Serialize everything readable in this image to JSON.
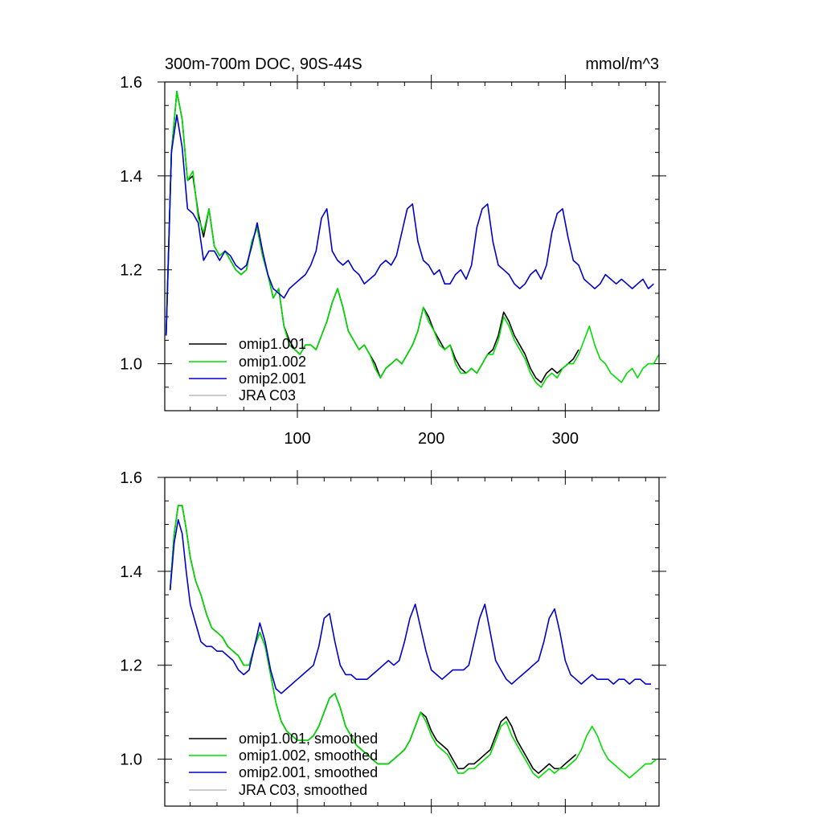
{
  "chart_data": [
    {
      "type": "line",
      "title": "300m-700m DOC, 90S-44S",
      "units": "mmol/m^3",
      "xlim": [
        1,
        370
      ],
      "ylim": [
        0.9,
        1.6
      ],
      "xticks": [
        100,
        200,
        300
      ],
      "yticks": [
        1.0,
        1.2,
        1.4,
        1.6
      ],
      "legend_position": "bottom-left",
      "series": [
        {
          "name": "omip1.001",
          "color": "#000000",
          "x": [
            2,
            6,
            10,
            14,
            18,
            22,
            26,
            30,
            34,
            38,
            42,
            46,
            50,
            54,
            58,
            62,
            66,
            70,
            74,
            78,
            82,
            86,
            90,
            94,
            98,
            102,
            106,
            110,
            114,
            118,
            122,
            126,
            130,
            134,
            138,
            142,
            146,
            150,
            154,
            158,
            162,
            166,
            170,
            174,
            178,
            182,
            186,
            190,
            194,
            198,
            202,
            206,
            210,
            214,
            218,
            222,
            226,
            230,
            234,
            238,
            242,
            246,
            250,
            254,
            258,
            262,
            266,
            270,
            274,
            278,
            282,
            286,
            290,
            294,
            298,
            302,
            306,
            310
          ],
          "y": [
            1.06,
            1.45,
            1.58,
            1.52,
            1.39,
            1.4,
            1.32,
            1.27,
            1.33,
            1.25,
            1.23,
            1.24,
            1.22,
            1.2,
            1.19,
            1.2,
            1.26,
            1.29,
            1.23,
            1.19,
            1.14,
            1.16,
            1.08,
            1.05,
            1.03,
            1.02,
            1.04,
            1.04,
            1.03,
            1.06,
            1.09,
            1.13,
            1.16,
            1.12,
            1.07,
            1.05,
            1.03,
            1.04,
            1.02,
            1.0,
            0.97,
            0.99,
            1.0,
            1.01,
            1.0,
            1.02,
            1.04,
            1.07,
            1.12,
            1.1,
            1.07,
            1.05,
            1.03,
            1.04,
            1.01,
            0.99,
            0.98,
            0.99,
            0.98,
            1.0,
            1.02,
            1.03,
            1.06,
            1.11,
            1.09,
            1.06,
            1.04,
            1.02,
            0.99,
            0.97,
            0.96,
            0.98,
            0.99,
            0.98,
            0.99,
            1.0,
            1.01,
            1.03
          ]
        },
        {
          "name": "omip1.002",
          "color": "#00dd00",
          "x": [
            2,
            6,
            10,
            14,
            18,
            22,
            26,
            30,
            34,
            38,
            42,
            46,
            50,
            54,
            58,
            62,
            66,
            70,
            74,
            78,
            82,
            86,
            90,
            94,
            98,
            102,
            106,
            110,
            114,
            118,
            122,
            126,
            130,
            134,
            138,
            142,
            146,
            150,
            154,
            158,
            162,
            166,
            170,
            174,
            178,
            182,
            186,
            190,
            194,
            198,
            202,
            206,
            210,
            214,
            218,
            222,
            226,
            230,
            234,
            238,
            242,
            246,
            250,
            254,
            258,
            262,
            266,
            270,
            274,
            278,
            282,
            286,
            290,
            294,
            298,
            302,
            306,
            310,
            314,
            318,
            322,
            326,
            330,
            334,
            338,
            342,
            346,
            350,
            354,
            358,
            362,
            366,
            370
          ],
          "y": [
            1.06,
            1.45,
            1.58,
            1.52,
            1.39,
            1.41,
            1.31,
            1.28,
            1.33,
            1.25,
            1.23,
            1.24,
            1.22,
            1.2,
            1.19,
            1.2,
            1.26,
            1.29,
            1.23,
            1.19,
            1.14,
            1.16,
            1.08,
            1.04,
            1.03,
            1.02,
            1.04,
            1.04,
            1.03,
            1.06,
            1.09,
            1.13,
            1.16,
            1.12,
            1.07,
            1.05,
            1.03,
            1.04,
            1.02,
            0.99,
            0.97,
            0.99,
            1.0,
            1.01,
            1.0,
            1.02,
            1.04,
            1.07,
            1.12,
            1.09,
            1.07,
            1.04,
            1.03,
            1.04,
            1.0,
            0.98,
            0.98,
            0.99,
            0.98,
            1.0,
            1.02,
            1.02,
            1.05,
            1.1,
            1.08,
            1.05,
            1.03,
            1.01,
            0.98,
            0.96,
            0.95,
            0.97,
            0.98,
            0.97,
            0.99,
            1.0,
            1.0,
            1.02,
            1.05,
            1.08,
            1.04,
            1.01,
            1.0,
            0.98,
            0.97,
            0.96,
            0.98,
            0.99,
            0.97,
            0.99,
            1.0,
            1.0,
            1.02
          ]
        },
        {
          "name": "omip2.001",
          "color": "#0000cc",
          "x": [
            2,
            6,
            10,
            14,
            18,
            22,
            26,
            30,
            34,
            38,
            42,
            46,
            50,
            54,
            58,
            62,
            66,
            70,
            74,
            78,
            82,
            86,
            90,
            94,
            98,
            102,
            106,
            110,
            114,
            118,
            122,
            126,
            130,
            134,
            138,
            142,
            146,
            150,
            154,
            158,
            162,
            166,
            170,
            174,
            178,
            182,
            186,
            190,
            194,
            198,
            202,
            206,
            210,
            214,
            218,
            222,
            226,
            230,
            234,
            238,
            242,
            246,
            250,
            254,
            258,
            262,
            266,
            270,
            274,
            278,
            282,
            286,
            290,
            294,
            298,
            302,
            306,
            310,
            314,
            318,
            322,
            326,
            330,
            334,
            338,
            342,
            346,
            350,
            354,
            358,
            362,
            366
          ],
          "y": [
            1.06,
            1.45,
            1.53,
            1.46,
            1.33,
            1.32,
            1.3,
            1.22,
            1.24,
            1.24,
            1.22,
            1.24,
            1.23,
            1.21,
            1.2,
            1.21,
            1.25,
            1.3,
            1.24,
            1.19,
            1.16,
            1.15,
            1.14,
            1.16,
            1.17,
            1.18,
            1.19,
            1.21,
            1.24,
            1.31,
            1.33,
            1.24,
            1.22,
            1.21,
            1.22,
            1.2,
            1.19,
            1.17,
            1.18,
            1.19,
            1.21,
            1.22,
            1.21,
            1.23,
            1.28,
            1.33,
            1.34,
            1.26,
            1.22,
            1.21,
            1.19,
            1.2,
            1.17,
            1.17,
            1.19,
            1.2,
            1.18,
            1.21,
            1.29,
            1.33,
            1.34,
            1.26,
            1.21,
            1.2,
            1.19,
            1.17,
            1.16,
            1.17,
            1.19,
            1.2,
            1.18,
            1.21,
            1.28,
            1.32,
            1.33,
            1.27,
            1.22,
            1.21,
            1.18,
            1.17,
            1.16,
            1.17,
            1.19,
            1.18,
            1.17,
            1.18,
            1.17,
            1.16,
            1.17,
            1.18,
            1.16,
            1.17
          ]
        }
      ]
    },
    {
      "type": "line",
      "title": "",
      "xlim": [
        1,
        370
      ],
      "ylim": [
        0.9,
        1.6
      ],
      "yticks": [
        1.0,
        1.2,
        1.4,
        1.6
      ],
      "legend_position": "bottom-left",
      "series": [
        {
          "name": "omip1.001, smoothed",
          "color": "#000000",
          "x": [
            5,
            8,
            11,
            14,
            17,
            20,
            24,
            28,
            32,
            36,
            40,
            44,
            48,
            52,
            56,
            60,
            64,
            68,
            72,
            76,
            80,
            84,
            88,
            92,
            96,
            100,
            104,
            108,
            112,
            116,
            120,
            124,
            128,
            132,
            136,
            140,
            144,
            148,
            152,
            156,
            160,
            164,
            168,
            172,
            176,
            180,
            184,
            188,
            192,
            196,
            200,
            204,
            208,
            212,
            216,
            220,
            224,
            228,
            232,
            236,
            240,
            244,
            248,
            252,
            256,
            260,
            264,
            268,
            272,
            276,
            280,
            284,
            288,
            292,
            296,
            300,
            304,
            308
          ],
          "y": [
            1.36,
            1.48,
            1.54,
            1.54,
            1.49,
            1.43,
            1.38,
            1.35,
            1.31,
            1.28,
            1.27,
            1.26,
            1.24,
            1.23,
            1.22,
            1.2,
            1.2,
            1.24,
            1.27,
            1.24,
            1.18,
            1.12,
            1.08,
            1.06,
            1.05,
            1.04,
            1.04,
            1.04,
            1.05,
            1.07,
            1.1,
            1.13,
            1.14,
            1.11,
            1.07,
            1.05,
            1.03,
            1.02,
            1.01,
            1.0,
            0.99,
            0.99,
            0.99,
            1.0,
            1.01,
            1.02,
            1.04,
            1.07,
            1.1,
            1.09,
            1.06,
            1.04,
            1.03,
            1.02,
            1.0,
            0.98,
            0.98,
            0.99,
            0.99,
            1.0,
            1.01,
            1.02,
            1.05,
            1.08,
            1.09,
            1.07,
            1.04,
            1.02,
            1.0,
            0.98,
            0.97,
            0.98,
            0.99,
            0.98,
            0.98,
            0.99,
            1.0,
            1.01
          ]
        },
        {
          "name": "omip1.002, smoothed",
          "color": "#00dd00",
          "x": [
            5,
            8,
            11,
            14,
            17,
            20,
            24,
            28,
            32,
            36,
            40,
            44,
            48,
            52,
            56,
            60,
            64,
            68,
            72,
            76,
            80,
            84,
            88,
            92,
            96,
            100,
            104,
            108,
            112,
            116,
            120,
            124,
            128,
            132,
            136,
            140,
            144,
            148,
            152,
            156,
            160,
            164,
            168,
            172,
            176,
            180,
            184,
            188,
            192,
            196,
            200,
            204,
            208,
            212,
            216,
            220,
            224,
            228,
            232,
            236,
            240,
            244,
            248,
            252,
            256,
            260,
            264,
            268,
            272,
            276,
            280,
            284,
            288,
            292,
            296,
            300,
            304,
            308,
            312,
            316,
            320,
            324,
            328,
            332,
            336,
            340,
            344,
            348,
            352,
            356,
            360,
            364,
            368
          ],
          "y": [
            1.36,
            1.48,
            1.54,
            1.54,
            1.49,
            1.43,
            1.38,
            1.35,
            1.31,
            1.28,
            1.27,
            1.26,
            1.24,
            1.23,
            1.22,
            1.2,
            1.2,
            1.24,
            1.27,
            1.24,
            1.18,
            1.12,
            1.08,
            1.06,
            1.05,
            1.04,
            1.04,
            1.04,
            1.05,
            1.07,
            1.1,
            1.13,
            1.14,
            1.11,
            1.07,
            1.05,
            1.03,
            1.02,
            1.01,
            1.0,
            0.99,
            0.99,
            0.99,
            1.0,
            1.01,
            1.02,
            1.04,
            1.07,
            1.1,
            1.08,
            1.05,
            1.03,
            1.02,
            1.01,
            0.99,
            0.97,
            0.97,
            0.98,
            0.98,
            0.99,
            1.0,
            1.01,
            1.04,
            1.07,
            1.08,
            1.05,
            1.03,
            1.01,
            0.99,
            0.97,
            0.96,
            0.97,
            0.98,
            0.97,
            0.98,
            0.98,
            0.99,
            1.0,
            1.02,
            1.05,
            1.07,
            1.05,
            1.02,
            1.0,
            0.99,
            0.98,
            0.97,
            0.96,
            0.97,
            0.98,
            0.99,
            0.99,
            1.0
          ]
        },
        {
          "name": "omip2.001, smoothed",
          "color": "#0000cc",
          "x": [
            5,
            8,
            11,
            14,
            17,
            20,
            24,
            28,
            32,
            36,
            40,
            44,
            48,
            52,
            56,
            60,
            64,
            68,
            72,
            76,
            80,
            84,
            88,
            92,
            96,
            100,
            104,
            108,
            112,
            116,
            120,
            124,
            128,
            132,
            136,
            140,
            144,
            148,
            152,
            156,
            160,
            164,
            168,
            172,
            176,
            180,
            184,
            188,
            192,
            196,
            200,
            204,
            208,
            212,
            216,
            220,
            224,
            228,
            232,
            236,
            240,
            244,
            248,
            252,
            256,
            260,
            264,
            268,
            272,
            276,
            280,
            284,
            288,
            292,
            296,
            300,
            304,
            308,
            312,
            316,
            320,
            324,
            328,
            332,
            336,
            340,
            344,
            348,
            352,
            356,
            360,
            364
          ],
          "y": [
            1.36,
            1.46,
            1.51,
            1.48,
            1.4,
            1.33,
            1.29,
            1.25,
            1.24,
            1.24,
            1.23,
            1.23,
            1.22,
            1.21,
            1.19,
            1.18,
            1.19,
            1.24,
            1.29,
            1.25,
            1.19,
            1.15,
            1.14,
            1.15,
            1.16,
            1.17,
            1.18,
            1.19,
            1.2,
            1.24,
            1.3,
            1.31,
            1.25,
            1.2,
            1.18,
            1.18,
            1.17,
            1.17,
            1.17,
            1.18,
            1.19,
            1.2,
            1.21,
            1.2,
            1.21,
            1.25,
            1.3,
            1.33,
            1.28,
            1.23,
            1.19,
            1.18,
            1.17,
            1.18,
            1.19,
            1.19,
            1.19,
            1.2,
            1.25,
            1.3,
            1.33,
            1.27,
            1.21,
            1.19,
            1.17,
            1.16,
            1.17,
            1.18,
            1.19,
            1.2,
            1.21,
            1.25,
            1.3,
            1.32,
            1.27,
            1.21,
            1.18,
            1.17,
            1.16,
            1.17,
            1.18,
            1.17,
            1.17,
            1.17,
            1.16,
            1.17,
            1.17,
            1.16,
            1.17,
            1.17,
            1.16,
            1.16
          ]
        }
      ]
    }
  ]
}
